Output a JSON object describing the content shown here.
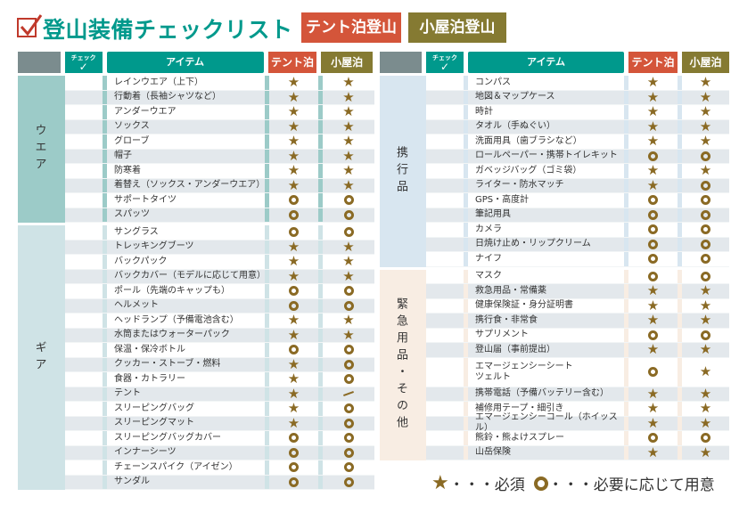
{
  "title": "登山装備チェックリスト",
  "tags": {
    "tent": "テント泊登山",
    "hut": "小屋泊登山"
  },
  "headers": {
    "check": "チェック",
    "item": "アイテム",
    "tent": "テント泊",
    "hut": "小屋泊"
  },
  "colors": {
    "teal": "#00998c",
    "tent": "#d4553a",
    "hut": "#857a32",
    "mark": "#8a6a24"
  },
  "left": [
    {
      "category": "ウエア",
      "tint": "#9ccbc8",
      "items": [
        {
          "name": "レインウエア（上下）",
          "tent": "star",
          "hut": "star"
        },
        {
          "name": "行動着（長袖シャツなど）",
          "tent": "star",
          "hut": "star"
        },
        {
          "name": "アンダーウエア",
          "tent": "star",
          "hut": "star"
        },
        {
          "name": "ソックス",
          "tent": "star",
          "hut": "star"
        },
        {
          "name": "グローブ",
          "tent": "star",
          "hut": "star"
        },
        {
          "name": "帽子",
          "tent": "star",
          "hut": "star"
        },
        {
          "name": "防寒着",
          "tent": "star",
          "hut": "star"
        },
        {
          "name": "着替え（ソックス・アンダーウエア）",
          "tent": "star",
          "hut": "star"
        },
        {
          "name": "サポートタイツ",
          "tent": "circle",
          "hut": "circle"
        },
        {
          "name": "スパッツ",
          "tent": "circle",
          "hut": "circle"
        }
      ]
    },
    {
      "category": "ギア",
      "tint": "#cfe3e6",
      "items": [
        {
          "name": "サングラス",
          "tent": "circle",
          "hut": "circle"
        },
        {
          "name": "トレッキングブーツ",
          "tent": "star",
          "hut": "star"
        },
        {
          "name": "バックパック",
          "tent": "star",
          "hut": "star"
        },
        {
          "name": "バックカバー（モデルに応じて用意）",
          "tent": "star",
          "hut": "star"
        },
        {
          "name": "ポール（先端のキャップも）",
          "tent": "circle",
          "hut": "circle"
        },
        {
          "name": "ヘルメット",
          "tent": "circle",
          "hut": "circle"
        },
        {
          "name": "ヘッドランプ（予備電池含む）",
          "tent": "star",
          "hut": "star"
        },
        {
          "name": "水筒またはウォーターパック",
          "tent": "star",
          "hut": "star"
        },
        {
          "name": "保温・保冷ボトル",
          "tent": "circle",
          "hut": "circle"
        },
        {
          "name": "クッカー・ストーブ・燃料",
          "tent": "star",
          "hut": "circle"
        },
        {
          "name": "食器・カトラリー",
          "tent": "star",
          "hut": "circle"
        },
        {
          "name": "テント",
          "tent": "star",
          "hut": "dash"
        },
        {
          "name": "スリーピングバッグ",
          "tent": "star",
          "hut": "circle"
        },
        {
          "name": "スリーピングマット",
          "tent": "star",
          "hut": "circle"
        },
        {
          "name": "スリーピングバッグカバー",
          "tent": "circle",
          "hut": "circle"
        },
        {
          "name": "インナーシーツ",
          "tent": "circle",
          "hut": "circle"
        },
        {
          "name": "チェーンスパイク（アイゼン）",
          "tent": "circle",
          "hut": "circle"
        },
        {
          "name": "サンダル",
          "tent": "circle",
          "hut": "circle"
        }
      ]
    }
  ],
  "right": [
    {
      "category": "携行品",
      "tint": "#d8e6f0",
      "items": [
        {
          "name": "コンパス",
          "tent": "star",
          "hut": "star"
        },
        {
          "name": "地図＆マップケース",
          "tent": "star",
          "hut": "star"
        },
        {
          "name": "時計",
          "tent": "star",
          "hut": "star"
        },
        {
          "name": "タオル（手ぬぐい）",
          "tent": "star",
          "hut": "star"
        },
        {
          "name": "洗面用具（歯ブラシなど）",
          "tent": "star",
          "hut": "star"
        },
        {
          "name": "ロールペーパー・携帯トイレキット",
          "tent": "circle",
          "hut": "circle"
        },
        {
          "name": "ガベッジバッグ（ゴミ袋）",
          "tent": "star",
          "hut": "star"
        },
        {
          "name": "ライター・防水マッチ",
          "tent": "star",
          "hut": "circle"
        },
        {
          "name": "GPS・高度計",
          "tent": "circle",
          "hut": "circle"
        },
        {
          "name": "筆記用具",
          "tent": "circle",
          "hut": "circle"
        },
        {
          "name": "カメラ",
          "tent": "circle",
          "hut": "circle"
        },
        {
          "name": "日焼け止め・リップクリーム",
          "tent": "circle",
          "hut": "circle"
        },
        {
          "name": "ナイフ",
          "tent": "circle",
          "hut": "circle"
        }
      ]
    },
    {
      "category": "緊急用品・その他",
      "tint": "#f8ede3",
      "items": [
        {
          "name": "マスク",
          "tent": "circle",
          "hut": "circle"
        },
        {
          "name": "救急用品・常備薬",
          "tent": "star",
          "hut": "star"
        },
        {
          "name": "健康保険証・身分証明書",
          "tent": "star",
          "hut": "star"
        },
        {
          "name": "携行食・非常食",
          "tent": "star",
          "hut": "star"
        },
        {
          "name": "サプリメント",
          "tent": "circle",
          "hut": "circle"
        },
        {
          "name": "登山届（事前提出）",
          "tent": "star",
          "hut": "star"
        },
        {
          "name": "エマージェンシーシート\nツェルト",
          "tent": "circle",
          "hut": "star"
        },
        {
          "name": "携帯電話（予備バッテリー含む）",
          "tent": "star",
          "hut": "star"
        },
        {
          "name": "補修用テープ・細引き",
          "tent": "star",
          "hut": "star"
        },
        {
          "name": "エマージェンシーコール（ホイッスル）",
          "tent": "star",
          "hut": "star"
        },
        {
          "name": "熊鈴・熊よけスプレー",
          "tent": "circle",
          "hut": "circle"
        },
        {
          "name": "山岳保険",
          "tent": "star",
          "hut": "star"
        }
      ]
    }
  ],
  "legend": {
    "required": "・・・必須",
    "optional": "・・・必要に応じて用意"
  }
}
